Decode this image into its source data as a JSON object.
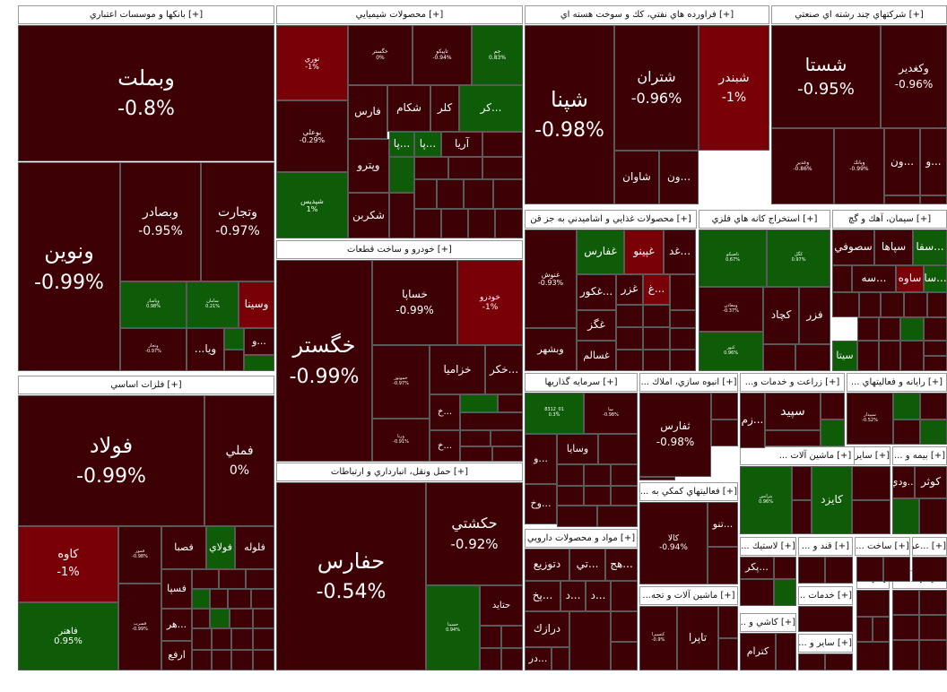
{
  "chart_data": {
    "type": "treemap",
    "title": "",
    "colors": {
      "dark": "#3d0005",
      "red": "#7a0008",
      "green": "#0e5c08",
      "border": "#5a5a5a"
    },
    "sectors": [
      {
        "name": "[+] بانکها و موسسات اعتباري",
        "stocks": [
          {
            "name": "وبملت",
            "change": "-0.8%"
          },
          {
            "name": "ونوين",
            "change": "-0.99%"
          },
          {
            "name": "وبصادر",
            "change": "-0.95%"
          },
          {
            "name": "وتجارت",
            "change": "-0.97%"
          },
          {
            "name": "وپاسار",
            "change": "0.98%"
          },
          {
            "name": "سامان",
            "change": "0.21%"
          },
          {
            "name": "وسينا",
            "change": ""
          },
          {
            "name": "وتجار",
            "change": "-0.97%"
          },
          {
            "name": "ويا...",
            "change": ""
          },
          {
            "name": "...و",
            "change": ""
          }
        ]
      },
      {
        "name": "[+] محصولات شيميايي",
        "stocks": [
          {
            "name": "نوري",
            "change": "-1%"
          },
          {
            "name": "خگستر",
            "change": "0%"
          },
          {
            "name": "تاپيكو",
            "change": "-0.94%"
          },
          {
            "name": "جم",
            "change": "0.83%"
          },
          {
            "name": "بوعلي",
            "change": "-0.29%"
          },
          {
            "name": "فارس",
            "change": ""
          },
          {
            "name": "شكام",
            "change": ""
          },
          {
            "name": "كلر",
            "change": ""
          },
          {
            "name": "...كر",
            "change": ""
          },
          {
            "name": "شپديس",
            "change": "1%"
          },
          {
            "name": "وپترو",
            "change": ""
          },
          {
            "name": "شكربن",
            "change": ""
          },
          {
            "name": "...پا",
            "change": ""
          },
          {
            "name": "...پا",
            "change": ""
          },
          {
            "name": "آريا",
            "change": ""
          }
        ]
      },
      {
        "name": "[+] فراورده هاي نفتي، كك و سوخت هسته اي",
        "stocks": [
          {
            "name": "شپنا",
            "change": "-0.98%"
          },
          {
            "name": "شتران",
            "change": "-0.96%"
          },
          {
            "name": "شبندر",
            "change": "-1%"
          },
          {
            "name": "شاوان",
            "change": ""
          },
          {
            "name": "...ون",
            "change": ""
          }
        ]
      },
      {
        "name": "[+] شركتهاي چند رشته اي صنعتي",
        "stocks": [
          {
            "name": "شستا",
            "change": "-0.95%"
          },
          {
            "name": "وكغدير",
            "change": "-0.96%"
          },
          {
            "name": "وغدير",
            "change": "-0.86%"
          },
          {
            "name": "وبانك",
            "change": "-0.99%"
          },
          {
            "name": "...ون",
            "change": ""
          },
          {
            "name": "...و",
            "change": ""
          }
        ]
      },
      {
        "name": "[+] خودرو و ساخت قطعات",
        "stocks": [
          {
            "name": "خگستر",
            "change": "-0.99%"
          },
          {
            "name": "خساپا",
            "change": "-0.99%"
          },
          {
            "name": "خودرو",
            "change": "-1%"
          },
          {
            "name": "خموتور",
            "change": "-0.97%"
          },
          {
            "name": "خزاميا",
            "change": ""
          },
          {
            "name": "...خكر",
            "change": ""
          },
          {
            "name": "ورنا",
            "change": "-0.91%"
          },
          {
            "name": "...خ",
            "change": ""
          },
          {
            "name": "...خ",
            "change": ""
          }
        ]
      },
      {
        "name": "[+] فلزات اساسي",
        "stocks": [
          {
            "name": "فولاد",
            "change": "-0.99%"
          },
          {
            "name": "فملي",
            "change": "0%"
          },
          {
            "name": "كاوه",
            "change": "-1%"
          },
          {
            "name": "فاهنر",
            "change": "0.95%"
          },
          {
            "name": "فمور",
            "change": "-0.98%"
          },
          {
            "name": "فصبا",
            "change": ""
          },
          {
            "name": "فولاي",
            "change": ""
          },
          {
            "name": "فلوله",
            "change": ""
          },
          {
            "name": "فسپا",
            "change": ""
          },
          {
            "name": "...هر",
            "change": ""
          },
          {
            "name": "ارفع",
            "change": ""
          },
          {
            "name": "فسرب",
            "change": "-0.99%"
          }
        ]
      },
      {
        "name": "[+] حمل ونقل، انبارداري و ارتباطات",
        "stocks": [
          {
            "name": "حفارس",
            "change": "-0.54%"
          },
          {
            "name": "حكشتي",
            "change": "-0.92%"
          },
          {
            "name": "حسينا",
            "change": "0.94%"
          },
          {
            "name": "حتايد",
            "change": ""
          }
        ]
      },
      {
        "name": "[+] محصولات غذايي و اشاميدني به جز قن",
        "stocks": [
          {
            "name": "غنوش",
            "change": "-0.93%"
          },
          {
            "name": "غفارس",
            "change": ""
          },
          {
            "name": "غپينو",
            "change": ""
          },
          {
            "name": "...غد",
            "change": ""
          },
          {
            "name": "...غكور",
            "change": ""
          },
          {
            "name": "غزر",
            "change": ""
          },
          {
            "name": "...غ",
            "change": ""
          },
          {
            "name": "غگز",
            "change": ""
          },
          {
            "name": "وبشهر",
            "change": ""
          },
          {
            "name": "غسالم",
            "change": ""
          }
        ]
      },
      {
        "name": "[+] استخراج كانه هاي فلزي",
        "stocks": [
          {
            "name": "تاصيكو",
            "change": "0.67%"
          },
          {
            "name": "كگل",
            "change": "0.97%"
          },
          {
            "name": "ومعادن",
            "change": "-0.37%"
          },
          {
            "name": "كچاد",
            "change": ""
          },
          {
            "name": "فزر",
            "change": ""
          },
          {
            "name": "كنور",
            "change": "0.96%"
          }
        ]
      },
      {
        "name": "[+] سيمان، آهك و گچ",
        "stocks": [
          {
            "name": "...سفا",
            "change": ""
          },
          {
            "name": "سپاها",
            "change": ""
          },
          {
            "name": "سصوفي",
            "change": ""
          },
          {
            "name": "...سا",
            "change": ""
          },
          {
            "name": "ساوه",
            "change": ""
          },
          {
            "name": "...سه",
            "change": ""
          },
          {
            "name": "سيتا",
            "change": ""
          }
        ]
      },
      {
        "name": "[+] سرمايه گذاريها",
        "stocks": [
          {
            "name": "01_8312",
            "change": "0.3%"
          },
          {
            "name": "سا",
            "change": "-0.98%"
          },
          {
            "name": "وسايا",
            "change": ""
          },
          {
            "name": "...و",
            "change": ""
          },
          {
            "name": "...وخ",
            "change": ""
          }
        ]
      },
      {
        "name": "[+] انبوه سازي، املاك ...",
        "stocks": [
          {
            "name": "ثفارس",
            "change": "-0.98%"
          }
        ]
      },
      {
        "name": "[+] زراعت و خدمات و...",
        "stocks": [
          {
            "name": "سپيد",
            "change": ""
          },
          {
            "name": "...زم",
            "change": ""
          }
        ]
      },
      {
        "name": "[+] رايانه و فعاليتهاي ...",
        "stocks": [
          {
            "name": "سپيدار",
            "change": "-0.52%"
          }
        ]
      },
      {
        "name": "[+] ماشين آلات ...",
        "stocks": [
          {
            "name": "بترانس",
            "change": "0.96%"
          }
        ]
      },
      {
        "name": "[+] ساير محصو ...",
        "stocks": [
          {
            "name": "كايزد",
            "change": ""
          }
        ]
      },
      {
        "name": "[+] بيمه و ...",
        "stocks": [
          {
            "name": "كوثر",
            "change": ""
          },
          {
            "name": "...ودي",
            "change": ""
          }
        ]
      },
      {
        "name": "[+] فعاليتهاي كمكي به ...",
        "stocks": [
          {
            "name": "كالا",
            "change": "-0.94%"
          },
          {
            "name": "...تنو",
            "change": ""
          }
        ]
      },
      {
        "name": "[+] مواد و محصولات دارويي",
        "stocks": [
          {
            "name": "دتوزيع",
            "change": ""
          },
          {
            "name": "...تي",
            "change": ""
          },
          {
            "name": "...هج",
            "change": ""
          },
          {
            "name": "...پخ",
            "change": ""
          },
          {
            "name": "...د",
            "change": ""
          },
          {
            "name": "...د",
            "change": ""
          },
          {
            "name": "درازك",
            "change": ""
          },
          {
            "name": "...در",
            "change": ""
          }
        ]
      },
      {
        "name": "[+] ماشين آلات و تجه...",
        "stocks": [
          {
            "name": "تاپرا",
            "change": ""
          },
          {
            "name": "کنسپرا",
            "change": "-0.9%"
          }
        ]
      },
      {
        "name": "[+] لاستيك ...",
        "stocks": [
          {
            "name": "...پكر",
            "change": ""
          }
        ]
      },
      {
        "name": "[+] قند و ...",
        "stocks": []
      },
      {
        "name": "[+] ساخت ...",
        "stocks": []
      },
      {
        "name": "[+] ...عر",
        "stocks": []
      },
      {
        "name": "[+] خدمات ...",
        "stocks": []
      },
      {
        "name": "[+] كاشي و ...",
        "stocks": [
          {
            "name": "كترام",
            "change": ""
          }
        ]
      },
      {
        "name": "[+] ساير و ...",
        "stocks": []
      },
      {
        "name": "[+] ...",
        "stocks": []
      },
      {
        "name": "[+] ...ا",
        "stocks": []
      }
    ]
  }
}
